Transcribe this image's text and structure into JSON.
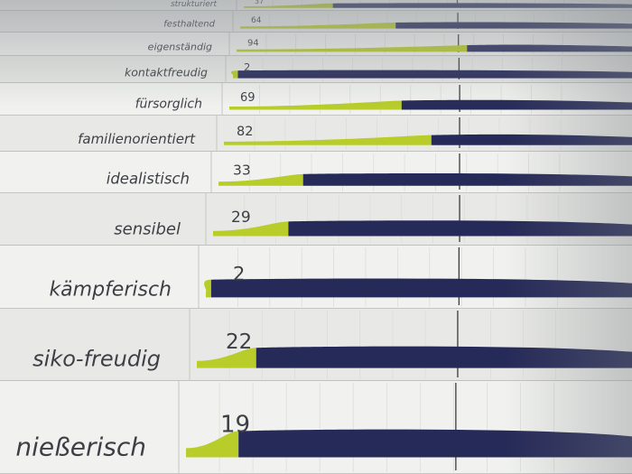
{
  "chart_data": {
    "type": "bar",
    "categories": [
      "strukturiert",
      "festhaltend",
      "eigenständig",
      "kontaktfreudig",
      "fürsorglich",
      "familienorientiert",
      "idealistisch",
      "sensibel",
      "kämpferisch",
      "risiko-freudig",
      "genießerisch"
    ],
    "categories_visible": [
      "strukturiert",
      "festhaltend",
      "eigenständig",
      "kontaktfreudig",
      "fürsorglich",
      "familienorientiert",
      "idealistisch",
      "sensibel",
      "kämpferisch",
      "siko-freudig",
      "nießerisch"
    ],
    "values": [
      37,
      64,
      94,
      2,
      69,
      82,
      33,
      29,
      2,
      22,
      19
    ],
    "value_labels": [
      "37",
      "64",
      "94",
      "2",
      "69",
      "82",
      "33",
      "29",
      "2",
      "22",
      "19"
    ],
    "ylim": [
      0,
      100
    ],
    "colors": {
      "positive": "#b8cc2a",
      "negative": "#262a58",
      "paper": "#ecedeb",
      "grid": "#3b3b3b"
    }
  }
}
